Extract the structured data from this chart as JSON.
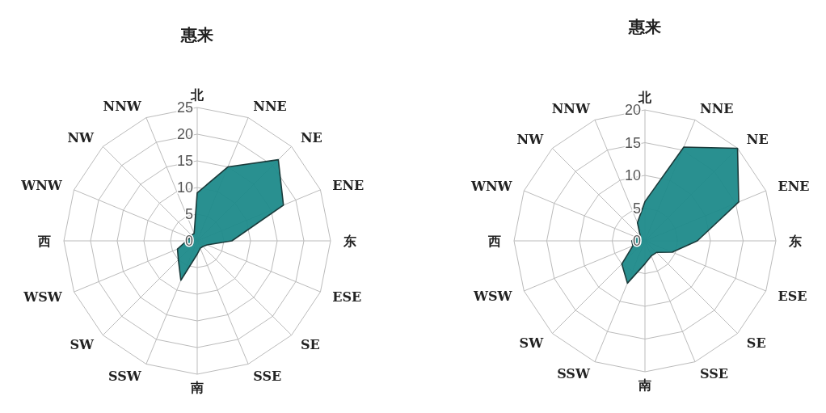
{
  "chart_data": [
    {
      "type": "radar",
      "title": "惠来",
      "categories": [
        "北",
        "NNE",
        "NE",
        "ENE",
        "东",
        "ESE",
        "SE",
        "SSE",
        "南",
        "SSW",
        "SW",
        "WSW",
        "西",
        "WNW",
        "NW",
        "NNW"
      ],
      "series": [
        {
          "color": "#1e8a8a",
          "values": [
            9,
            15,
            21.5,
            17.5,
            6.5,
            2,
            1.5,
            1.5,
            2.5,
            8,
            5,
            4,
            2,
            1.5,
            1.5,
            1.5
          ]
        }
      ],
      "ylim": [
        0,
        25
      ],
      "yticks": [
        0,
        5,
        10,
        15,
        20,
        25
      ],
      "grid": true
    },
    {
      "type": "radar",
      "title": "惠来",
      "categories": [
        "北",
        "NNE",
        "NE",
        "ENE",
        "东",
        "ESE",
        "SE",
        "SSE",
        "南",
        "SSW",
        "SW",
        "WSW",
        "西",
        "WNW",
        "NW",
        "NNW"
      ],
      "series": [
        {
          "color": "#1e8a8a",
          "values": [
            6,
            15.5,
            20,
            15.5,
            8,
            4.5,
            2.5,
            2.5,
            3.5,
            7,
            5,
            2,
            2,
            1.5,
            1,
            3
          ]
        }
      ],
      "ylim": [
        0,
        20
      ],
      "yticks": [
        0,
        5,
        10,
        15,
        20
      ],
      "grid": true
    }
  ]
}
